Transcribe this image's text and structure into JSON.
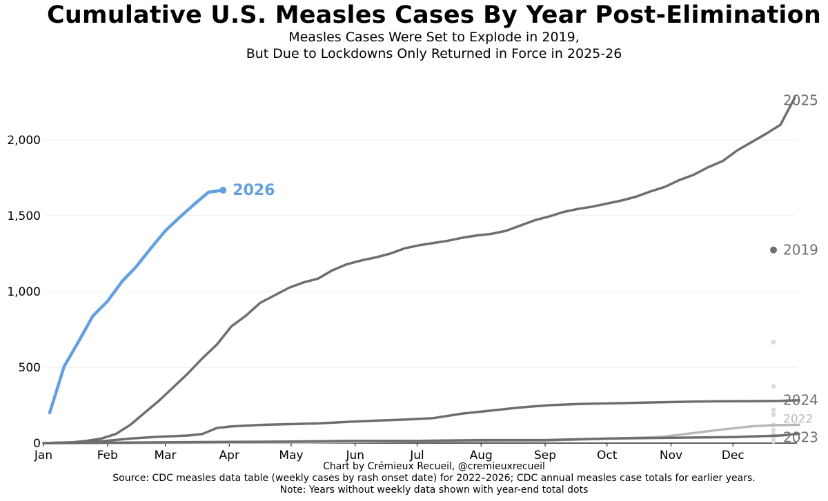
{
  "chart_data": {
    "type": "line",
    "title": "Cumulative U.S. Measles Cases By Year Post-Elimination",
    "subtitle": [
      "Measles Cases Were Set to Explode in 2019,",
      "But Due to Lockdowns Only Returned in Force in 2025-26"
    ],
    "xlabel": "",
    "ylabel": "",
    "x_unit": "day of year",
    "xlim": [
      1,
      366
    ],
    "ylim": [
      0,
      2500
    ],
    "x_ticks": [
      {
        "label": "Jan",
        "day": 1
      },
      {
        "label": "Feb",
        "day": 32
      },
      {
        "label": "Mar",
        "day": 60
      },
      {
        "label": "Apr",
        "day": 91
      },
      {
        "label": "May",
        "day": 121
      },
      {
        "label": "Jun",
        "day": 152
      },
      {
        "label": "Jul",
        "day": 182
      },
      {
        "label": "Aug",
        "day": 213
      },
      {
        "label": "Sep",
        "day": 244
      },
      {
        "label": "Oct",
        "day": 274
      },
      {
        "label": "Nov",
        "day": 305
      },
      {
        "label": "Dec",
        "day": 335
      }
    ],
    "y_ticks": [
      {
        "label": "0",
        "value": 0
      },
      {
        "label": "500",
        "value": 500
      },
      {
        "label": "1,000",
        "value": 1000
      },
      {
        "label": "1,500",
        "value": 1500
      },
      {
        "label": "2,000",
        "value": 2000
      }
    ],
    "grid": "horizontal",
    "series": [
      {
        "name": "2025",
        "label": "2025",
        "color": "#6e6e6e",
        "label_color": "#6e6e6e",
        "x": [
          1,
          15,
          22,
          29,
          36,
          43,
          50,
          57,
          64,
          71,
          78,
          85,
          92,
          99,
          106,
          113,
          120,
          127,
          134,
          141,
          148,
          155,
          162,
          169,
          176,
          183,
          190,
          197,
          204,
          211,
          218,
          225,
          232,
          239,
          246,
          253,
          260,
          267,
          274,
          281,
          288,
          295,
          302,
          309,
          316,
          323,
          330,
          337,
          344,
          351,
          358,
          365
        ],
        "y": [
          0,
          5,
          15,
          30,
          60,
          120,
          200,
          280,
          370,
          460,
          560,
          650,
          770,
          840,
          925,
          975,
          1025,
          1060,
          1085,
          1140,
          1180,
          1205,
          1225,
          1250,
          1285,
          1305,
          1320,
          1335,
          1355,
          1370,
          1380,
          1400,
          1435,
          1470,
          1495,
          1525,
          1545,
          1560,
          1580,
          1600,
          1625,
          1660,
          1690,
          1735,
          1770,
          1820,
          1860,
          1930,
          1985,
          2040,
          2100,
          2280
        ]
      },
      {
        "name": "2024",
        "label": "2024",
        "color": "#6e6e6e",
        "label_color": "#6e6e6e",
        "x": [
          1,
          15,
          29,
          43,
          57,
          71,
          78,
          85,
          92,
          106,
          120,
          134,
          148,
          162,
          176,
          190,
          204,
          218,
          232,
          246,
          260,
          274,
          288,
          302,
          316,
          330,
          344,
          358,
          367
        ],
        "y": [
          0,
          5,
          12,
          30,
          42,
          50,
          60,
          100,
          110,
          120,
          125,
          130,
          140,
          148,
          155,
          165,
          195,
          215,
          235,
          250,
          258,
          262,
          266,
          270,
          274,
          276,
          277,
          278,
          283
        ]
      },
      {
        "name": "2022",
        "label": "2022",
        "color": "#b8b8b8",
        "label_color": "#b8b8b8",
        "x": [
          1,
          60,
          120,
          180,
          240,
          300,
          330,
          345,
          355,
          367
        ],
        "y": [
          0,
          2,
          5,
          10,
          15,
          40,
          90,
          112,
          118,
          121
        ]
      },
      {
        "name": "2023",
        "label": "2023",
        "color": "#6e6e6e",
        "label_color": "#6e6e6e",
        "x": [
          1,
          60,
          91,
          121,
          152,
          182,
          213,
          244,
          274,
          305,
          335,
          358,
          367
        ],
        "y": [
          0,
          5,
          8,
          10,
          15,
          15,
          20,
          20,
          30,
          35,
          40,
          50,
          62
        ]
      },
      {
        "name": "2026",
        "label": "2026",
        "color": "#62a0e0",
        "label_color": "#62a0e0",
        "bold_label": true,
        "x": [
          4,
          11,
          18,
          25,
          32,
          39,
          46,
          53,
          60,
          67,
          74,
          81,
          88
        ],
        "y": [
          200,
          505,
          670,
          840,
          935,
          1065,
          1165,
          1285,
          1400,
          1490,
          1575,
          1655,
          1668
        ]
      }
    ],
    "year_end_dots": [
      {
        "year": "2019",
        "value": 1274,
        "color": "#6e6e6e",
        "labeled": true
      },
      {
        "year": "",
        "value": 667,
        "color": "#dcdcdc",
        "labeled": false
      },
      {
        "year": "",
        "value": 375,
        "color": "#dcdcdc",
        "labeled": false
      },
      {
        "year": "",
        "value": 220,
        "color": "#dcdcdc",
        "labeled": false
      },
      {
        "year": "",
        "value": 188,
        "color": "#dcdcdc",
        "labeled": false
      },
      {
        "year": "",
        "value": 120,
        "color": "#dcdcdc",
        "labeled": false
      },
      {
        "year": "",
        "value": 86,
        "color": "#dcdcdc",
        "labeled": false
      },
      {
        "year": "",
        "value": 55,
        "color": "#dcdcdc",
        "labeled": false
      },
      {
        "year": "",
        "value": 37,
        "color": "#dcdcdc",
        "labeled": false
      },
      {
        "year": "",
        "value": 13,
        "color": "#dcdcdc",
        "labeled": false
      }
    ],
    "footnotes": [
      "Chart by Crémieux Recueil, @cremieuxrecueil",
      "Source: CDC measles data table (weekly cases by rash onset date) for 2022–2026; CDC annual measles case totals for earlier years.",
      "Note: Years without weekly data shown with year-end total dots"
    ]
  }
}
